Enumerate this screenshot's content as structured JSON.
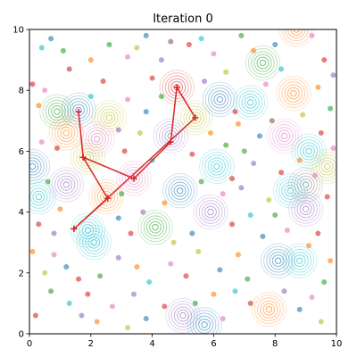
{
  "chart_data": {
    "type": "scatter",
    "title": "Iteration 0",
    "xlabel": "",
    "ylabel": "",
    "xlim": [
      0,
      10
    ],
    "ylim": [
      0,
      10
    ],
    "x_ticks": [
      "0",
      "2",
      "4",
      "6",
      "8",
      "10"
    ],
    "y_ticks": [
      "0",
      "2",
      "4",
      "6",
      "8",
      "10"
    ],
    "grid": false,
    "colors": {
      "blue": "#1f77b4",
      "orange": "#ff7f0e",
      "green": "#2ca02c",
      "red": "#d62728",
      "purple": "#9467bd",
      "brown": "#8c564b",
      "pink": "#e377c2",
      "gray": "#7f7f7f",
      "olive": "#bcbd22",
      "cyan": "#17becf",
      "path": "#d62728"
    },
    "path": [
      {
        "x": 1.45,
        "y": 3.45
      },
      {
        "x": 2.55,
        "y": 4.45
      },
      {
        "x": 1.75,
        "y": 5.8
      },
      {
        "x": 1.6,
        "y": 7.3
      },
      {
        "x": 1.75,
        "y": 5.8
      },
      {
        "x": 3.4,
        "y": 5.1
      },
      {
        "x": 4.6,
        "y": 6.3
      },
      {
        "x": 4.8,
        "y": 8.1
      },
      {
        "x": 5.4,
        "y": 7.1
      },
      {
        "x": 1.45,
        "y": 3.45
      }
    ],
    "clusters": [
      {
        "x": 1.6,
        "y": 7.35,
        "color": "blue"
      },
      {
        "x": 0.9,
        "y": 7.3,
        "color": "green"
      },
      {
        "x": 1.2,
        "y": 6.6,
        "color": "orange"
      },
      {
        "x": 2.6,
        "y": 7.1,
        "color": "olive"
      },
      {
        "x": 2.2,
        "y": 6.4,
        "color": "pink"
      },
      {
        "x": 0.1,
        "y": 5.5,
        "color": "blue"
      },
      {
        "x": 0.3,
        "y": 4.5,
        "color": "cyan"
      },
      {
        "x": 1.2,
        "y": 4.9,
        "color": "purple"
      },
      {
        "x": 1.9,
        "y": 5.8,
        "color": "olive"
      },
      {
        "x": 2.5,
        "y": 4.5,
        "color": "orange"
      },
      {
        "x": 3.4,
        "y": 5.1,
        "color": "pink"
      },
      {
        "x": 1.9,
        "y": 3.4,
        "color": "cyan"
      },
      {
        "x": 2.1,
        "y": 3.0,
        "color": "cyan"
      },
      {
        "x": 4.1,
        "y": 3.5,
        "color": "green"
      },
      {
        "x": 4.8,
        "y": 8.1,
        "color": "red"
      },
      {
        "x": 5.4,
        "y": 7.1,
        "color": "olive"
      },
      {
        "x": 4.6,
        "y": 6.5,
        "color": "purple"
      },
      {
        "x": 4.9,
        "y": 4.7,
        "color": "blue"
      },
      {
        "x": 5.9,
        "y": 4.0,
        "color": "purple"
      },
      {
        "x": 6.1,
        "y": 5.5,
        "color": "cyan"
      },
      {
        "x": 6.2,
        "y": 7.7,
        "color": "blue"
      },
      {
        "x": 7.2,
        "y": 7.6,
        "color": "cyan"
      },
      {
        "x": 7.6,
        "y": 8.9,
        "color": "green"
      },
      {
        "x": 8.7,
        "y": 10.0,
        "color": "orange"
      },
      {
        "x": 8.6,
        "y": 7.9,
        "color": "orange"
      },
      {
        "x": 8.3,
        "y": 6.5,
        "color": "pink"
      },
      {
        "x": 9.1,
        "y": 6.0,
        "color": "cyan"
      },
      {
        "x": 9.7,
        "y": 5.5,
        "color": "olive"
      },
      {
        "x": 9.0,
        "y": 4.9,
        "color": "gray"
      },
      {
        "x": 8.5,
        "y": 4.7,
        "color": "cyan"
      },
      {
        "x": 9.0,
        "y": 4.1,
        "color": "purple"
      },
      {
        "x": 8.1,
        "y": 2.4,
        "color": "blue"
      },
      {
        "x": 8.8,
        "y": 2.4,
        "color": "cyan"
      },
      {
        "x": 7.8,
        "y": 0.8,
        "color": "orange"
      },
      {
        "x": 5.0,
        "y": 0.6,
        "color": "purple"
      },
      {
        "x": 5.7,
        "y": 0.3,
        "color": "blue"
      }
    ],
    "points": [
      {
        "x": 0.1,
        "y": 8.2,
        "c": "red"
      },
      {
        "x": 0.4,
        "y": 9.4,
        "c": "cyan"
      },
      {
        "x": 0.7,
        "y": 9.7,
        "c": "blue"
      },
      {
        "x": 1.1,
        "y": 9.3,
        "c": "green"
      },
      {
        "x": 1.3,
        "y": 8.7,
        "c": "red"
      },
      {
        "x": 0.3,
        "y": 7.5,
        "c": "orange"
      },
      {
        "x": 0.5,
        "y": 8.0,
        "c": "pink"
      },
      {
        "x": 2.0,
        "y": 9.0,
        "c": "orange"
      },
      {
        "x": 2.6,
        "y": 9.5,
        "c": "green"
      },
      {
        "x": 3.2,
        "y": 9.1,
        "c": "pink"
      },
      {
        "x": 3.5,
        "y": 9.4,
        "c": "olive"
      },
      {
        "x": 3.8,
        "y": 9.8,
        "c": "blue"
      },
      {
        "x": 4.0,
        "y": 8.4,
        "c": "red"
      },
      {
        "x": 4.3,
        "y": 9.0,
        "c": "purple"
      },
      {
        "x": 4.6,
        "y": 9.6,
        "c": "brown"
      },
      {
        "x": 5.2,
        "y": 9.5,
        "c": "red"
      },
      {
        "x": 5.6,
        "y": 9.7,
        "c": "cyan"
      },
      {
        "x": 6.0,
        "y": 9.2,
        "c": "pink"
      },
      {
        "x": 6.4,
        "y": 8.6,
        "c": "olive"
      },
      {
        "x": 6.9,
        "y": 9.8,
        "c": "green"
      },
      {
        "x": 7.3,
        "y": 9.3,
        "c": "orange"
      },
      {
        "x": 8.0,
        "y": 9.5,
        "c": "blue"
      },
      {
        "x": 9.2,
        "y": 9.8,
        "c": "pink"
      },
      {
        "x": 9.6,
        "y": 9.0,
        "c": "red"
      },
      {
        "x": 9.9,
        "y": 8.5,
        "c": "purple"
      },
      {
        "x": 9.4,
        "y": 8.1,
        "c": "orange"
      },
      {
        "x": 9.8,
        "y": 7.4,
        "c": "green"
      },
      {
        "x": 9.5,
        "y": 6.6,
        "c": "red"
      },
      {
        "x": 9.9,
        "y": 6.1,
        "c": "pink"
      },
      {
        "x": 8.9,
        "y": 7.2,
        "c": "olive"
      },
      {
        "x": 7.9,
        "y": 7.0,
        "c": "brown"
      },
      {
        "x": 7.5,
        "y": 6.5,
        "c": "blue"
      },
      {
        "x": 6.8,
        "y": 6.9,
        "c": "orange"
      },
      {
        "x": 7.0,
        "y": 6.0,
        "c": "green"
      },
      {
        "x": 6.6,
        "y": 5.1,
        "c": "red"
      },
      {
        "x": 7.3,
        "y": 5.6,
        "c": "purple"
      },
      {
        "x": 7.8,
        "y": 4.4,
        "c": "olive"
      },
      {
        "x": 7.2,
        "y": 3.9,
        "c": "cyan"
      },
      {
        "x": 7.6,
        "y": 3.2,
        "c": "blue"
      },
      {
        "x": 8.4,
        "y": 3.4,
        "c": "pink"
      },
      {
        "x": 9.4,
        "y": 3.3,
        "c": "red"
      },
      {
        "x": 9.8,
        "y": 2.4,
        "c": "orange"
      },
      {
        "x": 9.6,
        "y": 1.7,
        "c": "green"
      },
      {
        "x": 9.2,
        "y": 1.2,
        "c": "pink"
      },
      {
        "x": 8.8,
        "y": 0.8,
        "c": "blue"
      },
      {
        "x": 9.5,
        "y": 0.4,
        "c": "olive"
      },
      {
        "x": 8.3,
        "y": 1.4,
        "c": "purple"
      },
      {
        "x": 7.2,
        "y": 1.0,
        "c": "red"
      },
      {
        "x": 6.7,
        "y": 1.4,
        "c": "cyan"
      },
      {
        "x": 6.3,
        "y": 0.5,
        "c": "pink"
      },
      {
        "x": 6.0,
        "y": 1.3,
        "c": "orange"
      },
      {
        "x": 5.4,
        "y": 1.0,
        "c": "green"
      },
      {
        "x": 4.4,
        "y": 0.9,
        "c": "red"
      },
      {
        "x": 3.8,
        "y": 0.5,
        "c": "blue"
      },
      {
        "x": 3.4,
        "y": 1.3,
        "c": "purple"
      },
      {
        "x": 3.2,
        "y": 0.2,
        "c": "olive"
      },
      {
        "x": 2.7,
        "y": 0.9,
        "c": "pink"
      },
      {
        "x": 2.2,
        "y": 0.4,
        "c": "orange"
      },
      {
        "x": 1.7,
        "y": 0.6,
        "c": "purple"
      },
      {
        "x": 1.9,
        "y": 1.3,
        "c": "red"
      },
      {
        "x": 1.3,
        "y": 1.0,
        "c": "cyan"
      },
      {
        "x": 0.7,
        "y": 1.4,
        "c": "green"
      },
      {
        "x": 0.2,
        "y": 0.6,
        "c": "red"
      },
      {
        "x": 0.5,
        "y": 2.0,
        "c": "olive"
      },
      {
        "x": 0.1,
        "y": 2.7,
        "c": "orange"
      },
      {
        "x": 0.8,
        "y": 2.6,
        "c": "pink"
      },
      {
        "x": 1.2,
        "y": 2.2,
        "c": "blue"
      },
      {
        "x": 1.6,
        "y": 1.8,
        "c": "red"
      },
      {
        "x": 2.3,
        "y": 1.9,
        "c": "green"
      },
      {
        "x": 2.9,
        "y": 2.5,
        "c": "purple"
      },
      {
        "x": 3.5,
        "y": 2.2,
        "c": "orange"
      },
      {
        "x": 3.9,
        "y": 1.7,
        "c": "cyan"
      },
      {
        "x": 4.6,
        "y": 2.3,
        "c": "pink"
      },
      {
        "x": 5.1,
        "y": 1.9,
        "c": "red"
      },
      {
        "x": 5.5,
        "y": 2.7,
        "c": "olive"
      },
      {
        "x": 6.2,
        "y": 2.1,
        "c": "blue"
      },
      {
        "x": 6.8,
        "y": 2.6,
        "c": "orange"
      },
      {
        "x": 7.1,
        "y": 1.8,
        "c": "green"
      },
      {
        "x": 0.3,
        "y": 3.6,
        "c": "red"
      },
      {
        "x": 0.8,
        "y": 3.3,
        "c": "purple"
      },
      {
        "x": 1.0,
        "y": 4.1,
        "c": "orange"
      },
      {
        "x": 0.6,
        "y": 5.0,
        "c": "green"
      },
      {
        "x": 0.4,
        "y": 6.3,
        "c": "pink"
      },
      {
        "x": 0.9,
        "y": 6.1,
        "c": "red"
      },
      {
        "x": 2.9,
        "y": 3.8,
        "c": "blue"
      },
      {
        "x": 3.3,
        "y": 3.3,
        "c": "red"
      },
      {
        "x": 3.7,
        "y": 4.0,
        "c": "purple"
      },
      {
        "x": 3.0,
        "y": 4.6,
        "c": "green"
      },
      {
        "x": 4.4,
        "y": 4.3,
        "c": "orange"
      },
      {
        "x": 4.0,
        "y": 5.7,
        "c": "cyan"
      },
      {
        "x": 3.1,
        "y": 6.0,
        "c": "red"
      },
      {
        "x": 3.6,
        "y": 6.6,
        "c": "olive"
      },
      {
        "x": 2.9,
        "y": 6.7,
        "c": "purple"
      },
      {
        "x": 3.8,
        "y": 7.3,
        "c": "blue"
      },
      {
        "x": 3.2,
        "y": 7.7,
        "c": "pink"
      },
      {
        "x": 2.4,
        "y": 8.3,
        "c": "red"
      },
      {
        "x": 2.0,
        "y": 7.8,
        "c": "cyan"
      },
      {
        "x": 4.3,
        "y": 7.8,
        "c": "green"
      },
      {
        "x": 5.7,
        "y": 8.3,
        "c": "purple"
      },
      {
        "x": 5.9,
        "y": 6.6,
        "c": "orange"
      },
      {
        "x": 5.3,
        "y": 5.9,
        "c": "red"
      },
      {
        "x": 5.6,
        "y": 5.0,
        "c": "green"
      },
      {
        "x": 6.3,
        "y": 4.6,
        "c": "pink"
      },
      {
        "x": 6.6,
        "y": 3.6,
        "c": "red"
      },
      {
        "x": 5.3,
        "y": 3.3,
        "c": "blue"
      },
      {
        "x": 4.7,
        "y": 3.0,
        "c": "olive"
      },
      {
        "x": 6.9,
        "y": 4.8,
        "c": "purple"
      },
      {
        "x": 8.2,
        "y": 5.3,
        "c": "red"
      },
      {
        "x": 8.8,
        "y": 5.7,
        "c": "orange"
      },
      {
        "x": 6.7,
        "y": 7.3,
        "c": "red"
      },
      {
        "x": 6.4,
        "y": 6.2,
        "c": "green"
      },
      {
        "x": 7.7,
        "y": 8.2,
        "c": "pink"
      },
      {
        "x": 8.2,
        "y": 8.7,
        "c": "cyan"
      },
      {
        "x": 9.3,
        "y": 5.2,
        "c": "pink"
      },
      {
        "x": 9.7,
        "y": 4.5,
        "c": "red"
      },
      {
        "x": 8.0,
        "y": 3.9,
        "c": "green"
      },
      {
        "x": 9.1,
        "y": 2.9,
        "c": "orange"
      }
    ]
  }
}
